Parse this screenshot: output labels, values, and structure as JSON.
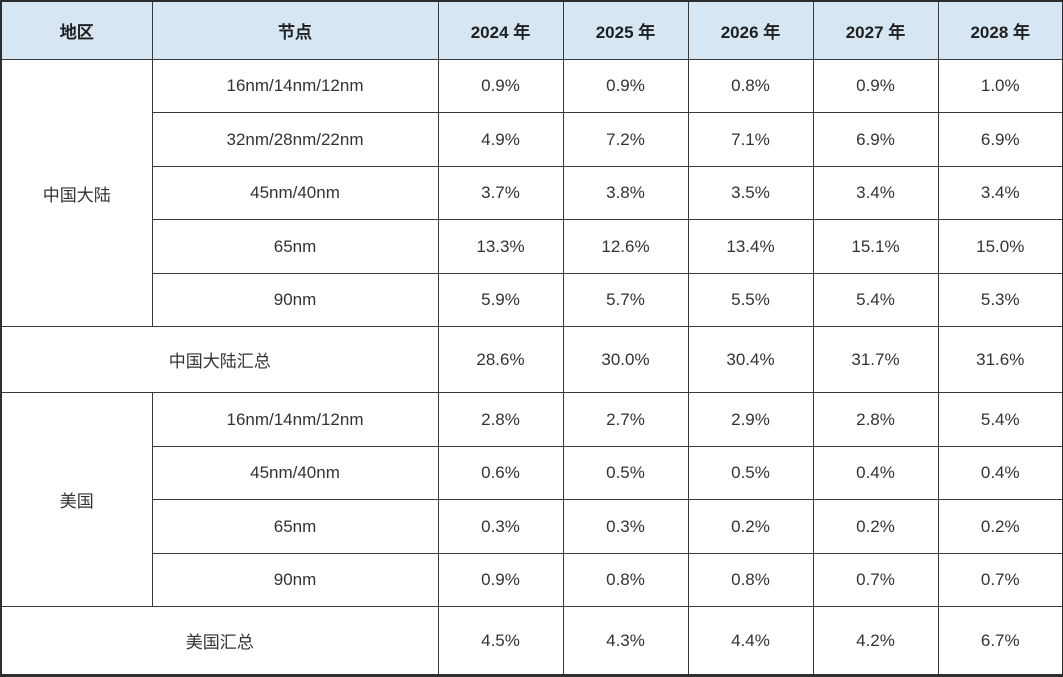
{
  "chart_data": {
    "type": "table",
    "columns": [
      "地区",
      "节点",
      "2024 年",
      "2025 年",
      "2026 年",
      "2027 年",
      "2028 年"
    ],
    "sections": [
      {
        "region": "中国大陆",
        "rows": [
          {
            "node": "16nm/14nm/12nm",
            "values": [
              "0.9%",
              "0.9%",
              "0.8%",
              "0.9%",
              "1.0%"
            ]
          },
          {
            "node": "32nm/28nm/22nm",
            "values": [
              "4.9%",
              "7.2%",
              "7.1%",
              "6.9%",
              "6.9%"
            ]
          },
          {
            "node": "45nm/40nm",
            "values": [
              "3.7%",
              "3.8%",
              "3.5%",
              "3.4%",
              "3.4%"
            ]
          },
          {
            "node": "65nm",
            "values": [
              "13.3%",
              "12.6%",
              "13.4%",
              "15.1%",
              "15.0%"
            ]
          },
          {
            "node": "90nm",
            "values": [
              "5.9%",
              "5.7%",
              "5.5%",
              "5.4%",
              "5.3%"
            ]
          }
        ],
        "subtotal": {
          "label": "中国大陆汇总",
          "values": [
            "28.6%",
            "30.0%",
            "30.4%",
            "31.7%",
            "31.6%"
          ]
        }
      },
      {
        "region": "美国",
        "rows": [
          {
            "node": "16nm/14nm/12nm",
            "values": [
              "2.8%",
              "2.7%",
              "2.9%",
              "2.8%",
              "5.4%"
            ]
          },
          {
            "node": "45nm/40nm",
            "values": [
              "0.6%",
              "0.5%",
              "0.5%",
              "0.4%",
              "0.4%"
            ]
          },
          {
            "node": "65nm",
            "values": [
              "0.3%",
              "0.3%",
              "0.2%",
              "0.2%",
              "0.2%"
            ]
          },
          {
            "node": "90nm",
            "values": [
              "0.9%",
              "0.8%",
              "0.8%",
              "0.7%",
              "0.7%"
            ]
          }
        ],
        "subtotal": {
          "label": "美国汇总",
          "values": [
            "4.5%",
            "4.3%",
            "4.4%",
            "4.2%",
            "6.7%"
          ]
        }
      }
    ],
    "colors": {
      "header_bg": "#d6e6f2",
      "grid_border": "#3a3a3a",
      "outer_border": "#2e2e2e",
      "text": "#333333"
    }
  }
}
